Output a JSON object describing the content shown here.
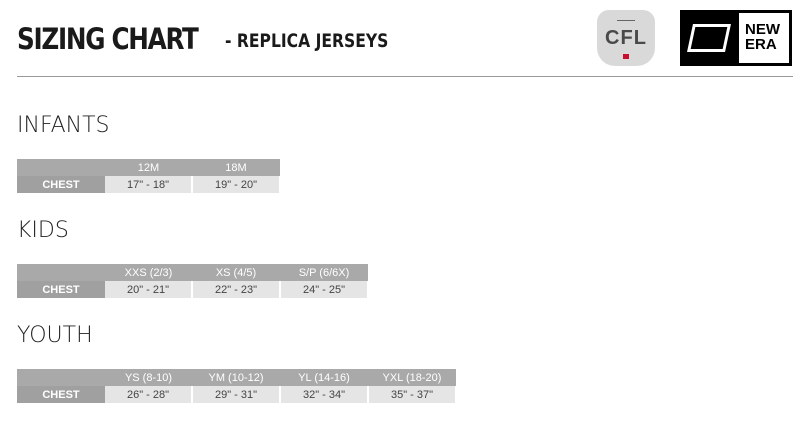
{
  "header": {
    "title": "SIZING CHART",
    "subtitle": "- REPLICA JERSEYS",
    "logos": {
      "cfl": "CFL",
      "new_era": "NEW ERA"
    }
  },
  "colors": {
    "header_row": "#a9a9a9",
    "label_cell": "#a0a0a0",
    "data_cell": "#e5e5e5"
  },
  "sections": [
    {
      "name": "INFANTS",
      "row_label": "CHEST",
      "sizes": [
        "12M",
        "18M"
      ],
      "values": [
        "17\" - 18\"",
        "19\" - 20\""
      ]
    },
    {
      "name": "KIDS",
      "row_label": "CHEST",
      "sizes": [
        "XXS (2/3)",
        "XS (4/5)",
        "S/P (6/6X)"
      ],
      "values": [
        "20\" - 21\"",
        "22\" - 23\"",
        "24\" - 25\""
      ]
    },
    {
      "name": "YOUTH",
      "row_label": "CHEST",
      "sizes": [
        "YS (8-10)",
        "YM (10-12)",
        "YL (14-16)",
        "YXL (18-20)"
      ],
      "values": [
        "26\" - 28\"",
        "29\" - 31\"",
        "32\" - 34\"",
        "35\" - 37\""
      ]
    }
  ]
}
